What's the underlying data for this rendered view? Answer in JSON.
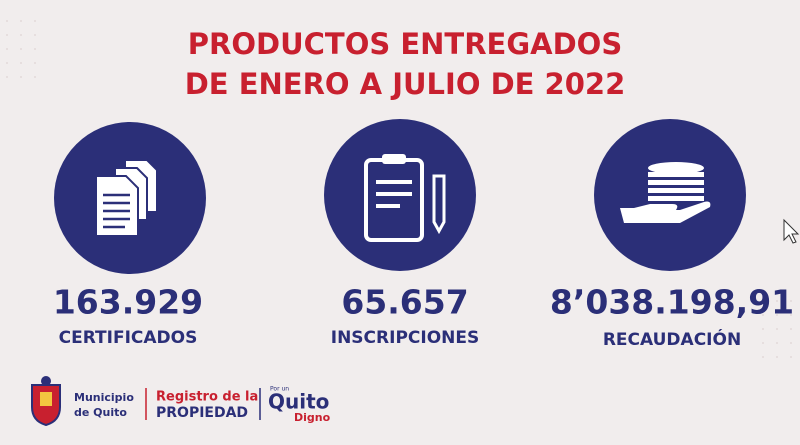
{
  "header": {
    "title_lines": [
      "PRODUCTOS ENTREGADOS",
      "DE ENERO A JULIO DE 2022"
    ]
  },
  "stats": [
    {
      "value": "163.929",
      "label": "CERTIFICADOS"
    },
    {
      "value": "65.657",
      "label": "INSCRIPCIONES"
    },
    {
      "value": "8’038.198,91",
      "label": "RECAUDACIÓN"
    }
  ],
  "footer": {
    "municipio": [
      "Municipio",
      "de Quito"
    ],
    "registro": [
      "Registro de la",
      "PROPIEDAD"
    ],
    "quito": [
      "Por un",
      "Quito",
      "Digno"
    ]
  }
}
